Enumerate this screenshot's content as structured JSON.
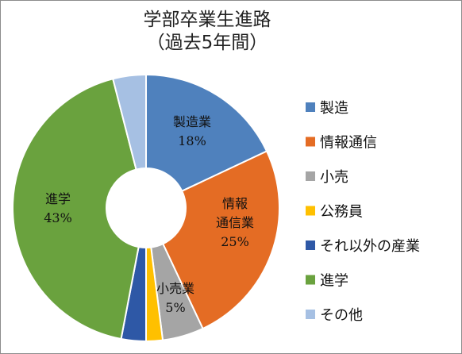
{
  "chart_data": {
    "type": "pie",
    "title_lines": [
      "学部卒業生進路",
      "（過去5年間）"
    ],
    "legend_position": "right",
    "donut": true,
    "slices": [
      {
        "name": "製造",
        "label_lines": [
          "製造業"
        ],
        "value": 18,
        "value_label": "18%",
        "color": "#4f81bd"
      },
      {
        "name": "情報通信",
        "label_lines": [
          "情報",
          "通信業"
        ],
        "value": 25,
        "value_label": "25%",
        "color": "#e46c24"
      },
      {
        "name": "小売",
        "label_lines": [
          "小売業"
        ],
        "value": 5,
        "value_label": "5%",
        "color": "#a5a5a5"
      },
      {
        "name": "公務員",
        "label_lines": [],
        "value": 2,
        "value_label": "",
        "color": "#ffc000"
      },
      {
        "name": "それ以外の産業",
        "label_lines": [],
        "value": 3,
        "value_label": "",
        "color": "#2e58a6"
      },
      {
        "name": "進学",
        "label_lines": [
          "進学"
        ],
        "value": 43,
        "value_label": "43%",
        "color": "#6aa23e"
      },
      {
        "name": "その他",
        "label_lines": [],
        "value": 4,
        "value_label": "",
        "color": "#a6c0e3"
      }
    ]
  }
}
